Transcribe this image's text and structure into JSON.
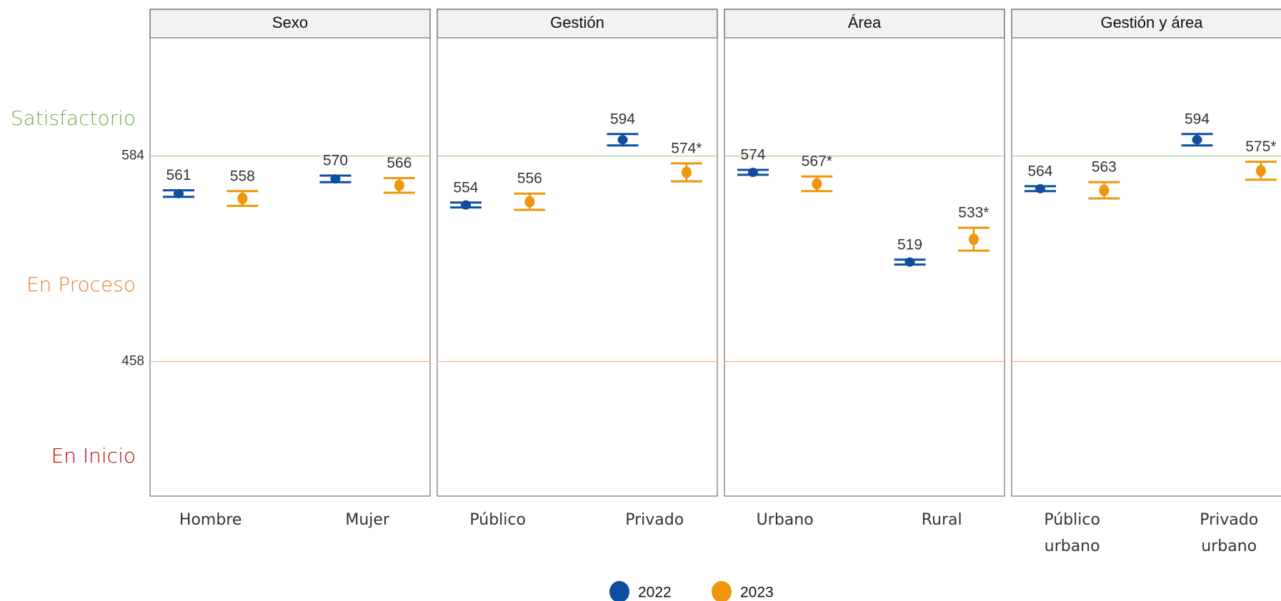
{
  "chart_data": [
    {
      "type": "errorbar",
      "title": "Sexo",
      "categories": [
        "Hombre",
        "Mujer"
      ],
      "ylim": [
        375.5,
        656.5
      ],
      "yticks": [
        458,
        584
      ],
      "ytick_colors": [
        "#f4b183",
        "#a9d18e"
      ],
      "annotations": [
        {
          "text": "Satisfactorio",
          "color": "#70ad47"
        },
        {
          "text": "En Proceso",
          "color": "#ed7d31"
        },
        {
          "text": "En Inicio",
          "color": "#c00000"
        }
      ],
      "series": [
        {
          "name": "2022",
          "color": "#0d4ea0",
          "values": [
            561,
            570
          ],
          "errors": [
            2,
            2
          ]
        },
        {
          "name": "2023",
          "color": "#f0960a",
          "values": [
            558,
            566
          ],
          "errors": [
            4.5,
            4.5
          ],
          "value_labels": [
            "558",
            "566"
          ]
        }
      ]
    },
    {
      "type": "errorbar",
      "title": "Gestión",
      "categories": [
        "Público",
        "Privado"
      ],
      "series": [
        {
          "name": "2022",
          "color": "#0d4ea0",
          "values": [
            554,
            594
          ],
          "errors": [
            1.5,
            3.5
          ]
        },
        {
          "name": "2023",
          "color": "#f0960a",
          "values": [
            556,
            574
          ],
          "errors": [
            5,
            5.5
          ],
          "value_labels": [
            "556",
            "574*"
          ]
        }
      ]
    },
    {
      "type": "errorbar",
      "title": "Área",
      "categories": [
        "Urbano",
        "Rural"
      ],
      "series": [
        {
          "name": "2022",
          "color": "#0d4ea0",
          "values": [
            574,
            519
          ],
          "errors": [
            1.5,
            1.5
          ]
        },
        {
          "name": "2023",
          "color": "#f0960a",
          "values": [
            567,
            533
          ],
          "errors": [
            4.5,
            7
          ],
          "value_labels": [
            "567*",
            "533*"
          ]
        }
      ]
    },
    {
      "type": "errorbar",
      "title": "Gestión y área",
      "categories": [
        "Público urbano",
        "Privado urbano"
      ],
      "series": [
        {
          "name": "2022",
          "color": "#0d4ea0",
          "values": [
            564,
            594
          ],
          "errors": [
            1.5,
            3.5
          ]
        },
        {
          "name": "2023",
          "color": "#f0960a",
          "values": [
            563,
            575
          ],
          "errors": [
            5,
            5.5
          ],
          "value_labels": [
            "563",
            "575*"
          ]
        }
      ]
    }
  ]
}
